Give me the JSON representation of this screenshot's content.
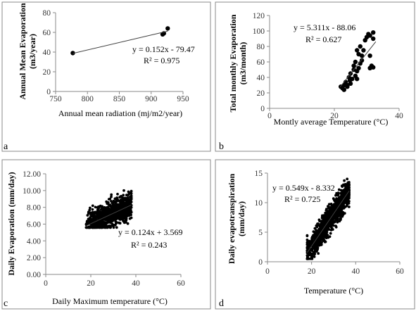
{
  "chart_data": [
    {
      "panel": "a",
      "type": "scatter",
      "title": "",
      "xlabel": "Annual mean radiation (mj/m2/year)",
      "ylabel": "Annual Mean Evaporation (m3/year)",
      "ylabel_lines": [
        "Annual Mean Evaporation",
        "(m3/year)"
      ],
      "xlim": [
        750,
        950
      ],
      "ylim": [
        0,
        80
      ],
      "xticks": [
        750,
        800,
        850,
        900,
        950
      ],
      "yticks": [
        0,
        20,
        40,
        60,
        80
      ],
      "xtick_labels": [
        "750",
        "800",
        "850",
        "900",
        "950"
      ],
      "ytick_labels": [
        "0",
        "20",
        "40",
        "60",
        "80"
      ],
      "x": [
        777,
        918,
        920,
        926
      ],
      "y": [
        39,
        58,
        59,
        64
      ],
      "trendline": {
        "slope": 0.152,
        "intercept": -79.47,
        "x_range": [
          777,
          926
        ]
      },
      "equation": "y = 0.152x - 79.47",
      "r2": "R² = 0.975"
    },
    {
      "panel": "b",
      "type": "scatter",
      "title": "",
      "xlabel": "Montly average Temperature (°C)",
      "ylabel": "Total monthly Evaporation (m3/month)",
      "ylabel_lines": [
        "Total monthly Evaporation",
        "(m3/month)"
      ],
      "xlim": [
        0,
        40
      ],
      "ylim": [
        0,
        120
      ],
      "xticks": [
        0,
        20,
        40
      ],
      "yticks": [
        0,
        20,
        40,
        60,
        80,
        100,
        120
      ],
      "xtick_labels": [
        "0",
        "20",
        "40"
      ],
      "ytick_labels": [
        "0",
        "20",
        "40",
        "60",
        "80",
        "100",
        "120"
      ],
      "x": [
        22.0,
        22.5,
        23.0,
        23.5,
        24.0,
        24.5,
        24.8,
        25.0,
        25.5,
        26.0,
        26.0,
        26.5,
        26.5,
        27.0,
        27.0,
        27.5,
        27.5,
        28.0,
        28.0,
        28.5,
        28.5,
        29.0,
        29.5,
        30.0,
        30.5,
        31.0,
        31.0,
        31.5,
        32.0,
        32.0,
        31.0,
        32.0,
        27.0,
        25.0,
        24.0,
        23.0
      ],
      "y": [
        28,
        26,
        30,
        34,
        30,
        40,
        36,
        45,
        38,
        50,
        55,
        42,
        60,
        48,
        75,
        52,
        70,
        58,
        80,
        68,
        62,
        75,
        88,
        92,
        96,
        94,
        68,
        55,
        53,
        90,
        52,
        98,
        38,
        32,
        28,
        24
      ],
      "trendline": {
        "slope": 5.311,
        "intercept": -88.06,
        "x_range": [
          21.8,
          32.8
        ]
      },
      "equation": "y = 5.311x - 88.06",
      "r2": "R² = 0.627"
    },
    {
      "panel": "c",
      "type": "scatter",
      "title": "",
      "xlabel": "Daily Maximum temperature (°C)",
      "ylabel": "Daily Evaporation (mm/day)",
      "ylabel_lines": [
        "Daily Evaporation (mm/day)"
      ],
      "xlim": [
        0,
        60
      ],
      "ylim": [
        0,
        12
      ],
      "xticks": [
        0,
        20,
        40,
        60
      ],
      "yticks": [
        0,
        2,
        4,
        6,
        8,
        10,
        12
      ],
      "xtick_labels": [
        "0",
        "20",
        "40",
        "60"
      ],
      "ytick_labels": [
        "0.00",
        "2.00",
        "4.00",
        "6.00",
        "8.00",
        "10.00",
        "12.00"
      ],
      "point_cloud": {
        "count": 900,
        "x_range": [
          18,
          38
        ],
        "y_min": 5.6,
        "y_max": 10.0,
        "slope": 0.124,
        "intercept": 3.569,
        "y_spread": 0.75
      },
      "trendline": {
        "slope": 0.124,
        "intercept": 3.569,
        "x_range": [
          18,
          38
        ]
      },
      "equation": "y = 0.124x + 3.569",
      "r2": "R² = 0.243"
    },
    {
      "panel": "d",
      "type": "scatter",
      "title": "",
      "xlabel": "Temperature (°C)",
      "ylabel": "Daily evapotranspiration (mm/day)",
      "ylabel_lines": [
        "Daily evapotranspiration",
        "(mm/day)"
      ],
      "xlim": [
        0,
        60
      ],
      "ylim": [
        0,
        15
      ],
      "xticks": [
        0,
        20,
        40,
        60
      ],
      "yticks": [
        0,
        5,
        10,
        15
      ],
      "xtick_labels": [
        "0",
        "20",
        "40",
        "60"
      ],
      "ytick_labels": [
        "0",
        "5",
        "10",
        "15"
      ],
      "point_cloud": {
        "count": 1100,
        "x_range": [
          18,
          37
        ],
        "y_min": 0.5,
        "y_max": 14.0,
        "slope": 0.549,
        "intercept": -8.332,
        "y_spread": 1.1
      },
      "trendline": {
        "slope": 0.549,
        "intercept": -8.332,
        "x_range": [
          18,
          37
        ]
      },
      "equation": "y = 0.549x - 8.332",
      "r2": "R² = 0.725"
    }
  ]
}
